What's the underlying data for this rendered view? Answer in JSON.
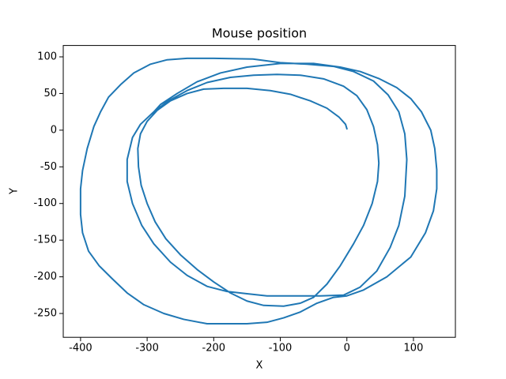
{
  "chart_data": {
    "type": "line",
    "title": "Mouse position",
    "xlabel": "X",
    "ylabel": "Y",
    "x": [
      0,
      -2,
      -12,
      -30,
      -55,
      -85,
      -115,
      -150,
      -185,
      -215,
      -240,
      -265,
      -285,
      -300,
      -310,
      -314,
      -313,
      -309,
      -300,
      -288,
      -272,
      -250,
      -225,
      -200,
      -175,
      -150,
      -125,
      -95,
      -70,
      -50,
      -30,
      -10,
      10,
      25,
      38,
      46,
      48,
      46,
      40,
      30,
      15,
      -5,
      -35,
      -70,
      -105,
      -140,
      -175,
      -210,
      -240,
      -268,
      -290,
      -310,
      -322,
      -330,
      -330,
      -322,
      -308,
      -290,
      -265,
      -240,
      -210,
      -180,
      -150,
      -120,
      -80,
      -40,
      -5,
      20,
      45,
      65,
      78,
      87,
      90,
      87,
      78,
      62,
      40,
      10,
      -20,
      -60,
      -100,
      -141,
      -200,
      -240,
      -270,
      -295,
      -320,
      -340,
      -358,
      -370,
      -380,
      -390,
      -397,
      -400,
      -400,
      -397,
      -388,
      -372,
      -352,
      -330,
      -305,
      -275,
      -245,
      -210,
      -180,
      -150,
      -120,
      -95,
      -70,
      -45,
      -20,
      0,
      25,
      60,
      96,
      118,
      130,
      135,
      135,
      132,
      126,
      112,
      96,
      75,
      49,
      20,
      -10,
      -50,
      -100,
      -150,
      -190,
      -225,
      -255,
      -280,
      -292
    ],
    "series": [
      {
        "color": "#1f77b4",
        "values": [
          2,
          8,
          18,
          30,
          40,
          49,
          54,
          57,
          57,
          56,
          50,
          40,
          27,
          12,
          -5,
          -25,
          -50,
          -75,
          -100,
          -125,
          -148,
          -170,
          -190,
          -207,
          -222,
          -233,
          -239,
          -240,
          -236,
          -228,
          -210,
          -185,
          -155,
          -130,
          -100,
          -70,
          -45,
          -20,
          5,
          28,
          47,
          60,
          70,
          75,
          76,
          75,
          72,
          65,
          54,
          40,
          25,
          8,
          -10,
          -40,
          -70,
          -100,
          -130,
          -155,
          -180,
          -198,
          -213,
          -220,
          -223,
          -226,
          -226,
          -226,
          -225,
          -214,
          -192,
          -160,
          -130,
          -90,
          -40,
          -5,
          25,
          48,
          67,
          80,
          87,
          90,
          92,
          97,
          98,
          98,
          96,
          90,
          78,
          62,
          45,
          25,
          5,
          -25,
          -55,
          -80,
          -115,
          -140,
          -165,
          -185,
          -203,
          -222,
          -238,
          -250,
          -258,
          -264,
          -264,
          -264,
          -262,
          -256,
          -248,
          -236,
          -228,
          -226,
          -218,
          -200,
          -173,
          -140,
          -110,
          -80,
          -54,
          -25,
          0,
          25,
          43,
          58,
          70,
          80,
          86,
          91,
          91,
          86,
          78,
          66,
          50,
          35,
          23
        ]
      }
    ],
    "xlim": [
      -426,
      163
    ],
    "ylim": [
      -282.5,
      115.5
    ],
    "xticks": [
      -400,
      -300,
      -200,
      -100,
      0,
      100
    ],
    "yticks": [
      -250,
      -200,
      -150,
      -100,
      -50,
      0,
      50,
      100
    ]
  }
}
